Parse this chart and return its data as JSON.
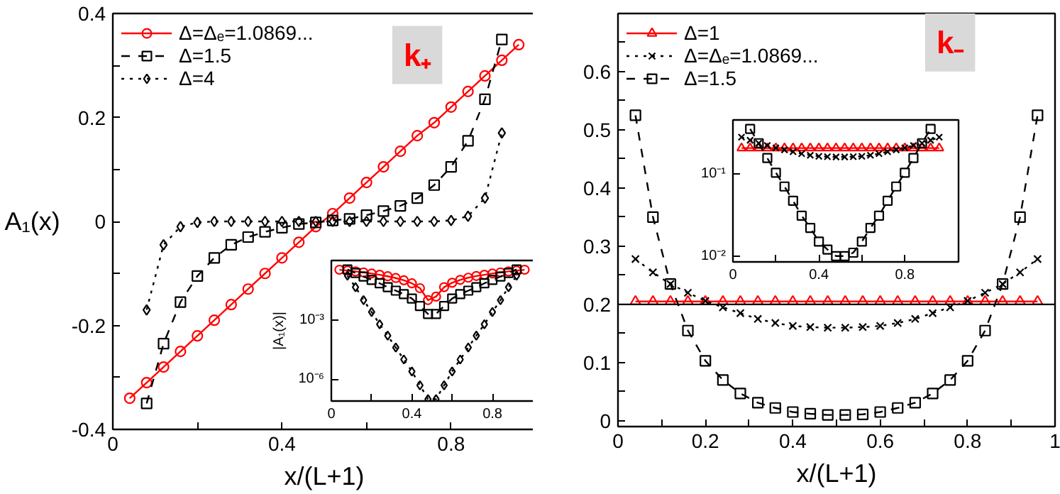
{
  "chart_data": [
    {
      "type": "line",
      "xlabel": "x/(L+1)",
      "ylabel": "A₁(x)",
      "annotations": [
        "k₊"
      ],
      "legend": "top left",
      "grid": false,
      "xlim": [
        0,
        1
      ],
      "ylim": [
        -0.4,
        0.4
      ],
      "xticks": [
        0,
        {
          "value": 0.2,
          "label": null
        },
        0.4,
        {
          "value": 0.6,
          "label": null
        },
        0.8
      ],
      "yticks": [
        -0.4,
        {
          "value": -0.3,
          "label": null
        },
        -0.2,
        {
          "value": -0.1,
          "label": null
        },
        0,
        {
          "value": 0.1,
          "label": null
        },
        0.2,
        {
          "value": 0.3,
          "label": null
        },
        0.4
      ],
      "x": [
        0.04,
        0.08,
        0.12,
        0.16,
        0.2,
        0.24,
        0.28,
        0.32,
        0.36,
        0.4,
        0.44,
        0.48,
        0.52,
        0.56,
        0.6,
        0.64,
        0.68,
        0.72,
        0.76,
        0.8,
        0.84,
        0.88,
        0.92,
        0.96
      ],
      "series": [
        {
          "name": "Δ=Δₑ=1.0869...",
          "color": "#ff0000",
          "marker": "circle",
          "line_style": "solid",
          "values": [
            -0.34,
            -0.31,
            -0.28,
            -0.25,
            -0.22,
            -0.19,
            -0.16,
            -0.13,
            -0.1,
            -0.07,
            -0.04,
            -0.01,
            0.015,
            0.045,
            0.075,
            0.105,
            0.135,
            0.165,
            0.19,
            0.22,
            0.25,
            0.28,
            0.31,
            0.34
          ]
        },
        {
          "name": "Δ=1.5",
          "color": "#000000",
          "marker": "square",
          "line_style": "dashed",
          "values": [
            null,
            -0.35,
            -0.235,
            -0.155,
            -0.105,
            -0.07,
            -0.045,
            -0.03,
            -0.02,
            -0.012,
            -0.005,
            -0.002,
            0.002,
            0.005,
            0.012,
            0.02,
            0.03,
            0.045,
            0.07,
            0.105,
            0.155,
            0.235,
            0.35,
            null
          ]
        },
        {
          "name": "Δ=4",
          "color": "#000000",
          "marker": "diamond",
          "line_style": "dotted",
          "values": [
            null,
            -0.17,
            -0.045,
            -0.01,
            -0.002,
            0,
            0,
            0,
            0,
            0,
            0,
            0,
            0,
            0,
            0,
            0,
            0,
            0,
            0,
            0.002,
            0.01,
            0.045,
            0.17,
            null
          ]
        }
      ]
    },
    {
      "type": "line",
      "ylabel": "|A₁(x)|",
      "log": true,
      "grid": false,
      "xlim": [
        0,
        1.05
      ],
      "ylim": [
        8e-08,
        1
      ],
      "xticks": [
        0,
        {
          "value": 0.2,
          "label": null
        },
        0.4,
        {
          "value": 0.6,
          "label": null
        },
        0.8
      ],
      "yticks": [
        {
          "value": 0.001,
          "label": "10⁻³"
        },
        {
          "value": 1e-06,
          "label": "10⁻⁶"
        }
      ],
      "x": [
        0.04,
        0.08,
        0.12,
        0.16,
        0.2,
        0.24,
        0.28,
        0.32,
        0.36,
        0.4,
        0.44,
        0.48,
        0.52,
        0.56,
        0.6,
        0.64,
        0.68,
        0.72,
        0.76,
        0.8,
        0.84,
        0.88,
        0.92,
        0.96
      ],
      "series": [
        {
          "color": "#ff0000",
          "marker": "circle",
          "line_style": "solid",
          "values": [
            0.34,
            0.31,
            0.28,
            0.25,
            0.22,
            0.19,
            0.16,
            0.13,
            0.1,
            0.07,
            0.04,
            0.01,
            0.015,
            0.045,
            0.075,
            0.105,
            0.135,
            0.165,
            0.19,
            0.22,
            0.25,
            0.28,
            0.31,
            0.34
          ]
        },
        {
          "color": "#000000",
          "marker": "square",
          "line_style": "dashed",
          "values": [
            null,
            0.35,
            0.235,
            0.155,
            0.105,
            0.07,
            0.045,
            0.03,
            0.02,
            0.012,
            0.005,
            0.002,
            0.002,
            0.005,
            0.012,
            0.02,
            0.03,
            0.045,
            0.07,
            0.105,
            0.155,
            0.235,
            0.35,
            null
          ]
        },
        {
          "color": "#000000",
          "marker": "diamond",
          "line_style": "dotted",
          "values": [
            null,
            0.17,
            0.045,
            0.01,
            0.0025,
            0.0006,
            0.00016,
            4e-05,
            1e-05,
            2.5e-06,
            5e-07,
            1e-07,
            1e-07,
            5e-07,
            2.5e-06,
            1e-05,
            4e-05,
            0.00016,
            0.0006,
            0.0025,
            0.01,
            0.045,
            0.17,
            null
          ]
        }
      ]
    },
    {
      "type": "line",
      "xlabel": "x/(L+1)",
      "annotations": [
        "k₋"
      ],
      "legend": "top left",
      "grid": false,
      "xlim": [
        0,
        1
      ],
      "ylim": [
        -0.01,
        0.7
      ],
      "xticks": [
        0,
        {
          "value": 0.1,
          "label": null
        },
        0.2,
        {
          "value": 0.3,
          "label": null
        },
        0.4,
        {
          "value": 0.5,
          "label": null
        },
        0.6,
        {
          "value": 0.7,
          "label": null
        },
        0.8,
        {
          "value": 0.9,
          "label": null
        },
        1
      ],
      "yticks": [
        0,
        {
          "value": 0.05,
          "label": null
        },
        0.1,
        {
          "value": 0.15,
          "label": null
        },
        0.2,
        {
          "value": 0.25,
          "label": null
        },
        0.3,
        {
          "value": 0.35,
          "label": null
        },
        0.4,
        {
          "value": 0.45,
          "label": null
        },
        0.5,
        {
          "value": 0.55,
          "label": null
        },
        0.6,
        {
          "value": 0.65,
          "label": null
        }
      ],
      "ref_lines": [
        {
          "axis": "y",
          "value": 0.2,
          "color": "#000000"
        }
      ],
      "x": [
        0.04,
        0.08,
        0.12,
        0.16,
        0.2,
        0.24,
        0.28,
        0.32,
        0.36,
        0.4,
        0.44,
        0.48,
        0.52,
        0.56,
        0.6,
        0.64,
        0.68,
        0.72,
        0.76,
        0.8,
        0.84,
        0.88,
        0.92,
        0.96
      ],
      "series": [
        {
          "name": "Δ=1",
          "color": "#ff0000",
          "marker": "triangle",
          "line_style": "solid",
          "values": [
            0.205,
            0.205,
            0.205,
            0.205,
            0.205,
            0.205,
            0.205,
            0.205,
            0.205,
            0.205,
            0.205,
            0.205,
            0.205,
            0.205,
            0.205,
            0.205,
            0.205,
            0.205,
            0.205,
            0.205,
            0.205,
            0.205,
            0.205,
            0.205
          ]
        },
        {
          "name": "Δ=Δₑ=1.0869...",
          "color": "#000000",
          "marker": "cross",
          "line_style": "dotted",
          "values": [
            0.278,
            0.255,
            0.235,
            0.22,
            0.206,
            0.195,
            0.185,
            0.175,
            0.168,
            0.163,
            0.161,
            0.16,
            0.16,
            0.161,
            0.163,
            0.168,
            0.175,
            0.185,
            0.195,
            0.206,
            0.22,
            0.235,
            0.255,
            0.278
          ]
        },
        {
          "name": "Δ=1.5",
          "color": "#000000",
          "marker": "square",
          "line_style": "dashed",
          "values": [
            0.525,
            0.35,
            0.235,
            0.155,
            0.103,
            0.07,
            0.047,
            0.031,
            0.022,
            0.015,
            0.012,
            0.01,
            0.01,
            0.011,
            0.015,
            0.022,
            0.031,
            0.047,
            0.07,
            0.103,
            0.155,
            0.235,
            0.35,
            0.525
          ]
        }
      ]
    },
    {
      "type": "line",
      "log": true,
      "grid": false,
      "xlim": [
        0,
        1.05
      ],
      "ylim": [
        0.0085,
        0.45
      ],
      "xticks": [
        0,
        {
          "value": 0.2,
          "label": null
        },
        0.4,
        {
          "value": 0.6,
          "label": null
        },
        0.8
      ],
      "yticks": [
        {
          "value": 0.01,
          "label": "10⁻²"
        },
        {
          "value": 0.1,
          "label": "10⁻¹"
        }
      ],
      "x": [
        0.04,
        0.08,
        0.12,
        0.16,
        0.2,
        0.24,
        0.28,
        0.32,
        0.36,
        0.4,
        0.44,
        0.48,
        0.52,
        0.56,
        0.6,
        0.64,
        0.68,
        0.72,
        0.76,
        0.8,
        0.84,
        0.88,
        0.92,
        0.96
      ],
      "series": [
        {
          "color": "#ff0000",
          "marker": "triangle",
          "line_style": "solid",
          "values": [
            0.205,
            0.205,
            0.205,
            0.205,
            0.205,
            0.205,
            0.205,
            0.205,
            0.205,
            0.205,
            0.205,
            0.205,
            0.205,
            0.205,
            0.205,
            0.205,
            0.205,
            0.205,
            0.205,
            0.205,
            0.205,
            0.205,
            0.205,
            0.205
          ]
        },
        {
          "color": "#000000",
          "marker": "cross",
          "line_style": "dotted",
          "values": [
            0.278,
            0.255,
            0.235,
            0.22,
            0.206,
            0.195,
            0.185,
            0.175,
            0.168,
            0.163,
            0.161,
            0.16,
            0.16,
            0.161,
            0.163,
            0.168,
            0.175,
            0.185,
            0.195,
            0.206,
            0.22,
            0.235,
            0.255,
            0.278
          ]
        },
        {
          "color": "#000000",
          "marker": "square",
          "line_style": "dashed",
          "values": [
            null,
            0.35,
            0.235,
            0.155,
            0.103,
            0.07,
            0.047,
            0.031,
            0.022,
            0.015,
            0.012,
            0.01,
            0.01,
            0.011,
            0.015,
            0.022,
            0.031,
            0.047,
            0.07,
            0.103,
            0.155,
            0.235,
            0.35,
            null
          ]
        }
      ]
    }
  ]
}
